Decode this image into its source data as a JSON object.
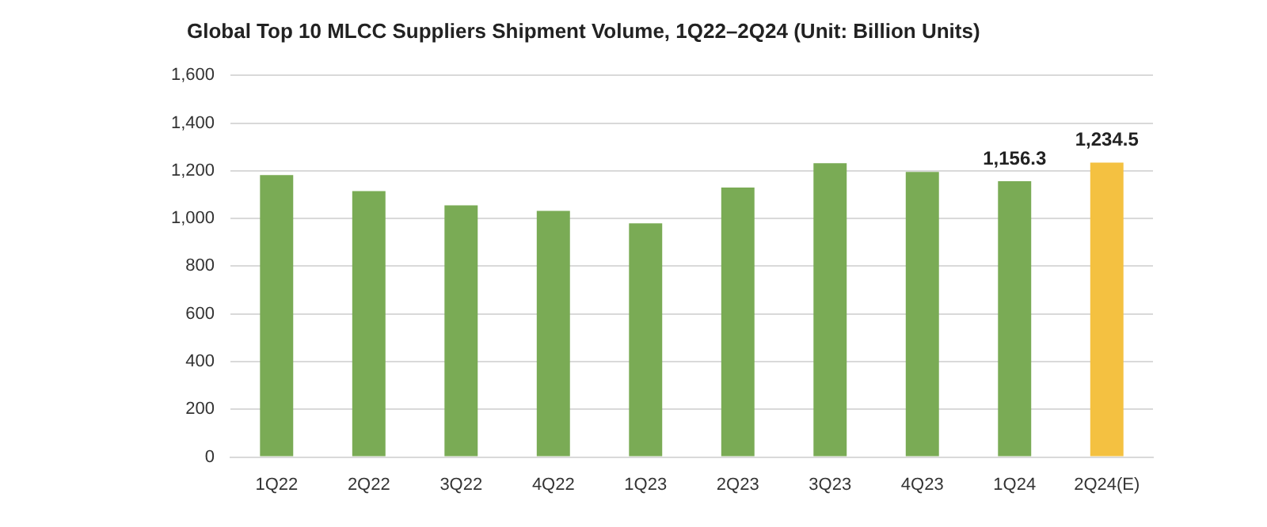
{
  "chart_data": {
    "type": "bar",
    "title": "Global Top 10 MLCC Suppliers Shipment Volume, 1Q22–2Q24 (Unit: Billion Units)",
    "categories": [
      "1Q22",
      "2Q22",
      "3Q22",
      "4Q22",
      "1Q23",
      "2Q23",
      "3Q23",
      "4Q23",
      "1Q24",
      "2Q24(E)"
    ],
    "values": [
      1182,
      1115,
      1055,
      1032,
      980,
      1130,
      1232,
      1195,
      1156.3,
      1234.5
    ],
    "colors": [
      "#7aab55",
      "#7aab55",
      "#7aab55",
      "#7aab55",
      "#7aab55",
      "#7aab55",
      "#7aab55",
      "#7aab55",
      "#7aab55",
      "#f4c141"
    ],
    "value_labels": [
      null,
      null,
      null,
      null,
      null,
      null,
      null,
      null,
      "1,156.3",
      "1,234.5"
    ],
    "ylim": [
      0,
      1600
    ],
    "yticks": [
      {
        "value": 0,
        "label": "0"
      },
      {
        "value": 200,
        "label": "200"
      },
      {
        "value": 400,
        "label": "400"
      },
      {
        "value": 600,
        "label": "600"
      },
      {
        "value": 800,
        "label": "800"
      },
      {
        "value": 1000,
        "label": "1,000"
      },
      {
        "value": 1200,
        "label": "1,200"
      },
      {
        "value": 1400,
        "label": "1,400"
      },
      {
        "value": 1600,
        "label": "1,600"
      }
    ],
    "grid": "y",
    "legend": false
  }
}
